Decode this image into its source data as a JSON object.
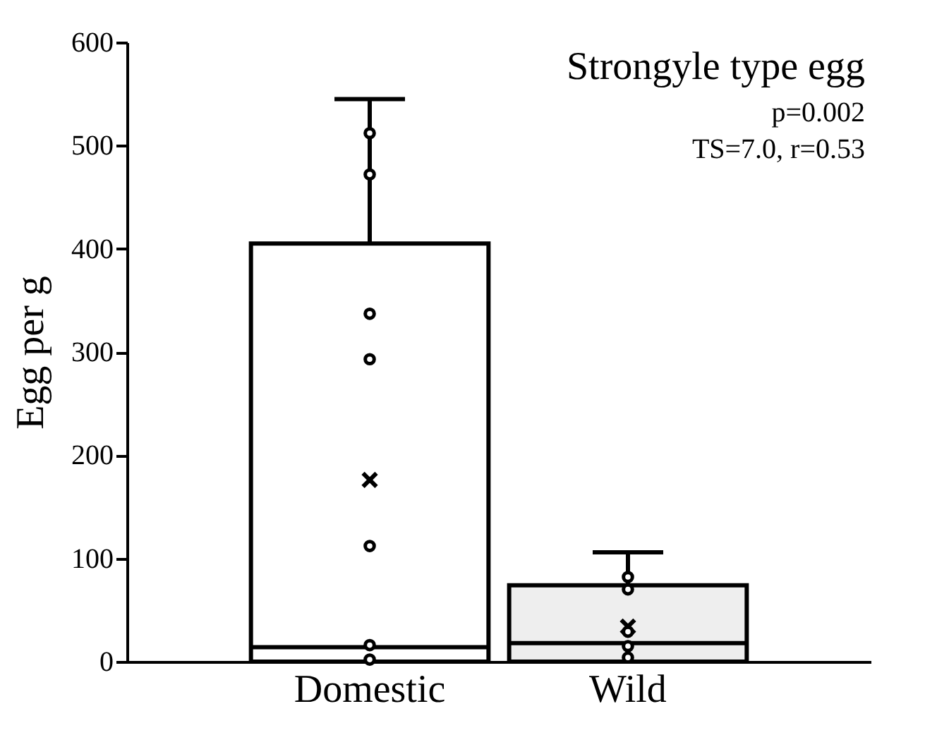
{
  "chart_data": {
    "type": "box",
    "title": "Strongyle type egg",
    "annotations": [
      "p=0.002",
      "TS=7.0, r=0.53"
    ],
    "ylabel": "Egg per g",
    "categories": [
      "Domestic",
      "Wild"
    ],
    "ylim": [
      0,
      600
    ],
    "yticks": [
      0,
      100,
      200,
      300,
      400,
      500,
      600
    ],
    "grid": false,
    "series": [
      {
        "type": "box",
        "colors": [
          "#ffffff",
          "#eeeeee"
        ],
        "boxes": [
          {
            "low": 0,
            "q1": 0,
            "median": 14,
            "q3": 405,
            "high": 545,
            "mean": 176
          },
          {
            "low": 0,
            "q1": 0,
            "median": 18,
            "q3": 74,
            "high": 106,
            "mean": 34
          }
        ]
      },
      {
        "type": "scatter",
        "color": "#000000",
        "marker": "circle",
        "x": [
          "Domestic",
          "Domestic",
          "Domestic",
          "Domestic",
          "Domestic",
          "Domestic",
          "Domestic",
          "Wild",
          "Wild",
          "Wild",
          "Wild",
          "Wild"
        ],
        "values": [
          512,
          472,
          337,
          293,
          112,
          16,
          2,
          82,
          70,
          29,
          15,
          4
        ]
      }
    ]
  }
}
